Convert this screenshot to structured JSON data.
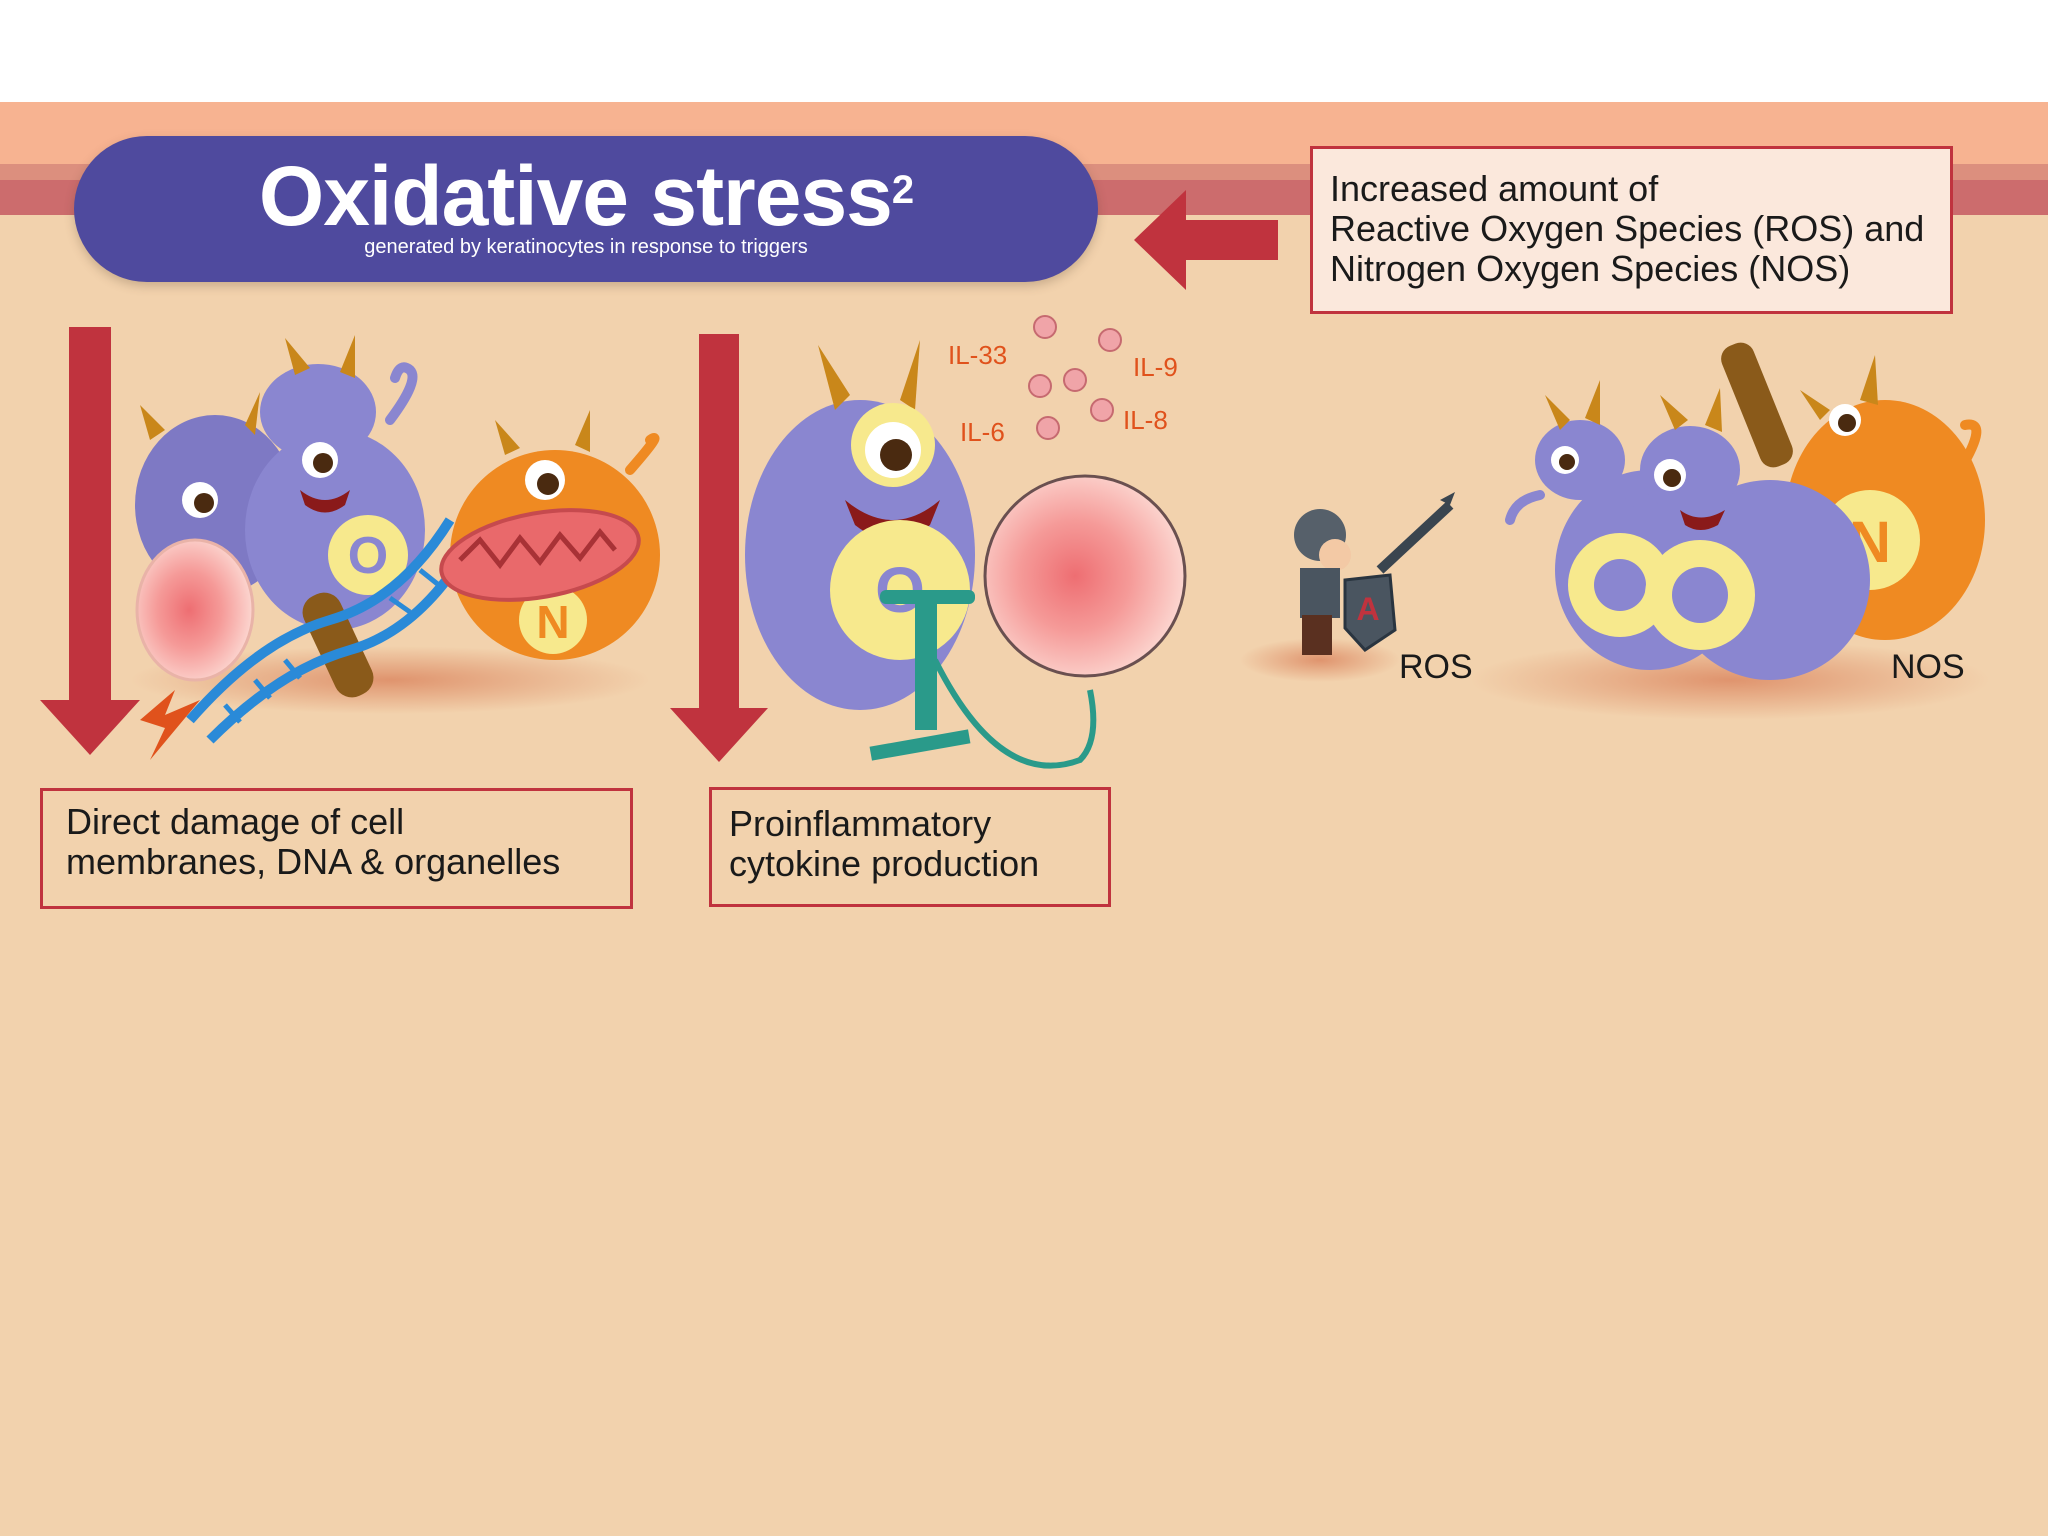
{
  "title": {
    "main": "Oxidative stress",
    "superscript": "2",
    "subtitle": "generated by keratinocytes in response to triggers"
  },
  "source_box": {
    "lines": [
      "Increased amount of",
      "Reactive Oxygen Species (ROS) and",
      "Nitrogen Oxygen Species (NOS)"
    ]
  },
  "effects": [
    {
      "lines": [
        "Direct damage of cell",
        "membranes, DNA & organelles"
      ]
    },
    {
      "lines": [
        "Proinflammatory",
        "cytokine production"
      ]
    }
  ],
  "cytokines": [
    "IL-33",
    "IL-9",
    "IL-6",
    "IL-8"
  ],
  "species_labels": {
    "ros": "ROS",
    "nos": "NOS"
  },
  "badges": {
    "oxygen": "O",
    "nitrogen": "N",
    "antioxidant": "A"
  },
  "colors": {
    "arrow": "#c0333e",
    "title_pill": "#4f4a9e",
    "ros_monster": "#8a86d0",
    "nos_monster": "#ef8a22",
    "cytokine_text": "#e0521c",
    "background": "#f2d2ad"
  }
}
